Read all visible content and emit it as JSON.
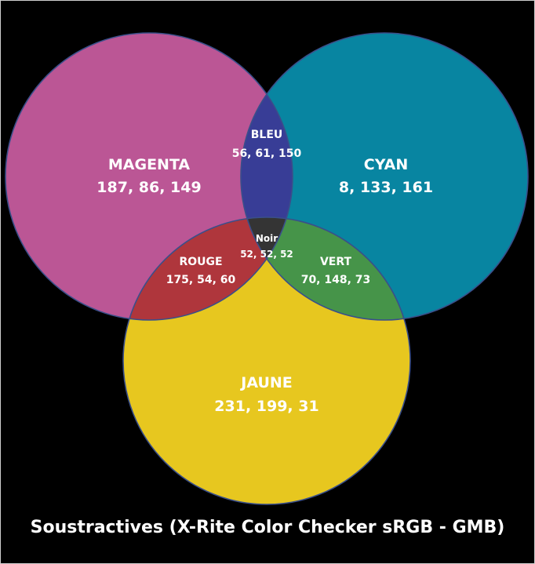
{
  "caption": "Soustractives (X-Rite Color Checker sRGB - GMB)",
  "regions": {
    "magenta": {
      "name": "MAGENTA",
      "value": "187, 86, 149",
      "color": "#bb5695"
    },
    "cyan": {
      "name": "CYAN",
      "value": "8, 133, 161",
      "color": "#0885a1"
    },
    "jaune": {
      "name": "JAUNE",
      "value": "231, 199, 31",
      "color": "#e7c71f"
    },
    "bleu": {
      "name": "BLEU",
      "value": "56, 61, 150",
      "color": "#383d96"
    },
    "rouge": {
      "name": "ROUGE",
      "value": "175, 54, 60",
      "color": "#af363c"
    },
    "vert": {
      "name": "VERT",
      "value": "70, 148, 73",
      "color": "#469449"
    },
    "noir": {
      "name": "Noir",
      "value": "52, 52, 52",
      "color": "#343434"
    }
  },
  "colors": {
    "background": "#000000",
    "outline": "#3a4f8a",
    "text": "#ffffff"
  }
}
